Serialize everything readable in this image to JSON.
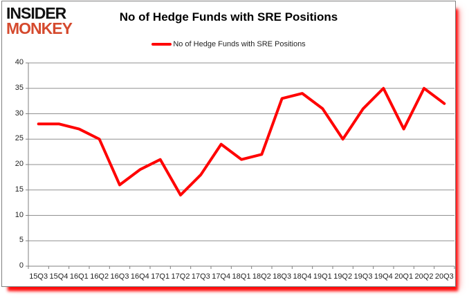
{
  "logo": {
    "line1": "INSIDER",
    "line2": "MONKEY",
    "accent_color": "#d54a2e"
  },
  "title": "No of Hedge Funds with SRE Positions",
  "legend": {
    "label": "No of Hedge Funds with SRE Positions",
    "swatch_color": "#ff0000",
    "position": "top-center"
  },
  "chart_data": {
    "type": "line",
    "title": "No of Hedge Funds with SRE Positions",
    "categories": [
      "15Q3",
      "15Q4",
      "16Q1",
      "16Q2",
      "16Q3",
      "16Q4",
      "17Q1",
      "17Q2",
      "17Q3",
      "17Q4",
      "18Q1",
      "18Q2",
      "18Q3",
      "18Q4",
      "19Q1",
      "19Q2",
      "19Q3",
      "19Q4",
      "20Q1",
      "20Q2",
      "20Q3"
    ],
    "series": [
      {
        "name": "No of Hedge Funds with SRE Positions",
        "color": "#ff0000",
        "values": [
          28,
          28,
          27,
          25,
          16,
          19,
          21,
          14,
          18,
          24,
          21,
          22,
          33,
          34,
          31,
          25,
          31,
          35,
          27,
          35,
          32
        ]
      }
    ],
    "xlabel": "",
    "ylabel": "",
    "ylim": [
      0,
      40
    ],
    "yticks": [
      0,
      5,
      10,
      15,
      20,
      25,
      30,
      35,
      40
    ],
    "grid": true,
    "legend_position": "top"
  },
  "colors": {
    "line": "#ff0000",
    "grid": "#8f8f8f",
    "axis": "#7f7f7f",
    "text": "#1f1f1f",
    "box_border": "#808080",
    "shadow": "#ff0000",
    "background": "#ffffff"
  }
}
